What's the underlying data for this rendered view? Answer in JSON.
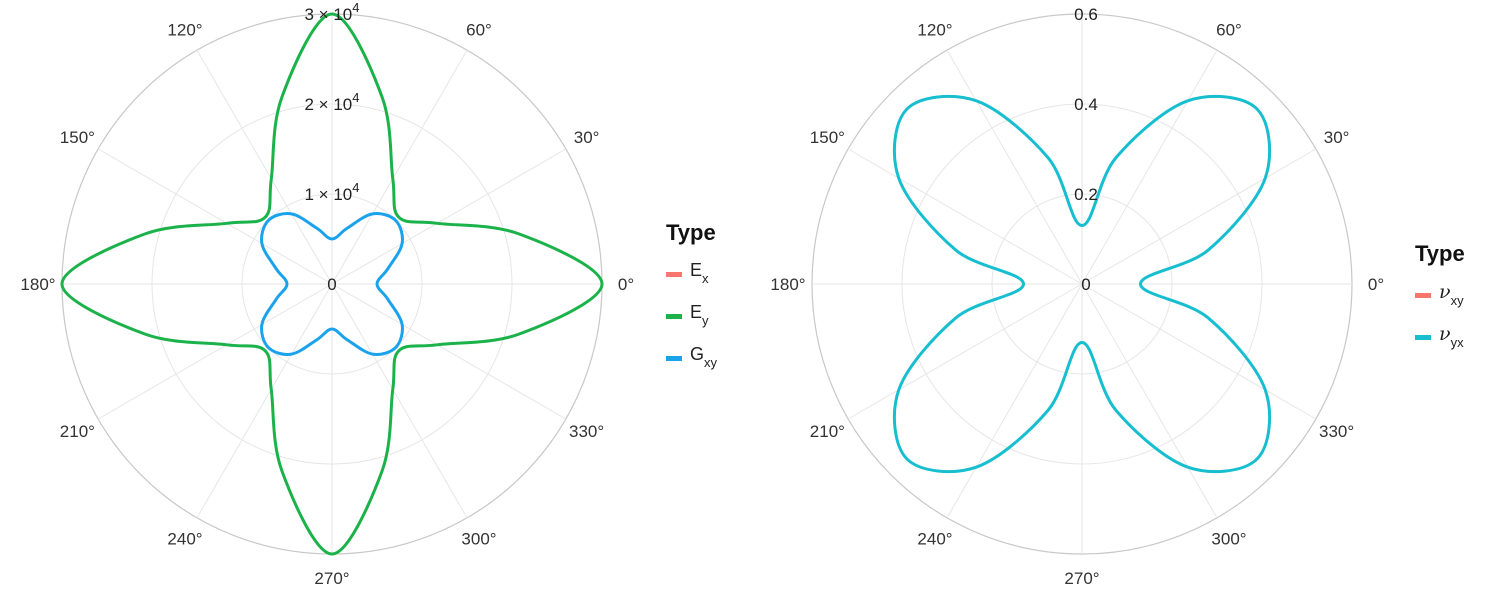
{
  "chart_data": [
    {
      "type": "line",
      "coordinate_system": "polar",
      "theta_unit": "degrees",
      "theta_ticks": [
        "0°",
        "30°",
        "60°",
        "90°",
        "120°",
        "150°",
        "180°",
        "210°",
        "240°",
        "270°",
        "300°",
        "330°"
      ],
      "theta_tick_labels_shown": [
        "0°",
        "30°",
        "60°",
        "120°",
        "150°",
        "180°",
        "210°",
        "240°",
        "270°",
        "300°",
        "330°"
      ],
      "r_lim": [
        0,
        30000
      ],
      "r_ticks": [
        0,
        10000,
        20000,
        30000
      ],
      "r_tick_labels": [
        {
          "base": "0",
          "exp": ""
        },
        {
          "base": "1 × 10",
          "exp": "4"
        },
        {
          "base": "2 × 10",
          "exp": "4"
        },
        {
          "base": "3 × 10",
          "exp": "4"
        }
      ],
      "grid": true,
      "legend_position": "right",
      "legend": {
        "title": "Type",
        "items": [
          {
            "base": "E",
            "sub": "x",
            "color": "#F8766D"
          },
          {
            "base": "E",
            "sub": "y",
            "color": "#1BB24A"
          },
          {
            "base": "G",
            "sub": "xy",
            "color": "#1AA3EC"
          }
        ]
      },
      "series": [
        {
          "name": "Ey",
          "color": "#1BB24A",
          "theta": [
            0,
            15,
            30,
            45,
            60,
            75,
            90,
            105,
            120,
            135,
            150,
            165,
            180,
            195,
            210,
            225,
            240,
            255,
            270,
            285,
            300,
            315,
            330,
            345,
            360
          ],
          "r": [
            30000,
            21500,
            13500,
            10500,
            13500,
            21500,
            30000,
            21500,
            13500,
            10500,
            13500,
            21500,
            30000,
            21500,
            13500,
            10500,
            13500,
            21500,
            30000,
            21500,
            13500,
            10500,
            13500,
            21500,
            30000
          ]
        },
        {
          "name": "Gxy",
          "color": "#1AA3EC",
          "theta": [
            0,
            15,
            30,
            45,
            60,
            75,
            90,
            105,
            120,
            135,
            150,
            165,
            180,
            195,
            210,
            225,
            240,
            255,
            270,
            285,
            300,
            315,
            330,
            345,
            360
          ],
          "r": [
            5000,
            6400,
            9000,
            10000,
            9000,
            6400,
            5000,
            6400,
            9000,
            10000,
            9000,
            6400,
            5000,
            6400,
            9000,
            10000,
            9000,
            6400,
            5000,
            6400,
            9000,
            10000,
            9000,
            6400,
            5000
          ]
        }
      ]
    },
    {
      "type": "line",
      "coordinate_system": "polar",
      "theta_unit": "degrees",
      "theta_ticks": [
        "0°",
        "30°",
        "60°",
        "90°",
        "120°",
        "150°",
        "180°",
        "210°",
        "240°",
        "270°",
        "300°",
        "330°"
      ],
      "theta_tick_labels_shown": [
        "0°",
        "30°",
        "60°",
        "120°",
        "150°",
        "180°",
        "210°",
        "240°",
        "270°",
        "300°",
        "330°"
      ],
      "r_lim": [
        0,
        0.6
      ],
      "r_ticks": [
        0,
        0.2,
        0.4,
        0.6
      ],
      "r_tick_labels": [
        {
          "base": "0",
          "exp": ""
        },
        {
          "base": "0.2",
          "exp": ""
        },
        {
          "base": "0.4",
          "exp": ""
        },
        {
          "base": "0.6",
          "exp": ""
        }
      ],
      "grid": true,
      "legend_position": "right",
      "legend": {
        "title": "Type",
        "items": [
          {
            "base": "ν",
            "sub": "xy",
            "color": "#F8766D"
          },
          {
            "base": "ν",
            "sub": "yx",
            "color": "#17BECF"
          }
        ]
      },
      "series": [
        {
          "name": "νyx",
          "color": "#17BECF",
          "theta": [
            0,
            15,
            30,
            45,
            60,
            75,
            90,
            105,
            120,
            135,
            150,
            165,
            180,
            195,
            210,
            225,
            240,
            255,
            270,
            285,
            300,
            315,
            330,
            345,
            360
          ],
          "r": [
            0.13,
            0.29,
            0.47,
            0.55,
            0.47,
            0.29,
            0.13,
            0.29,
            0.47,
            0.55,
            0.47,
            0.29,
            0.13,
            0.29,
            0.47,
            0.55,
            0.47,
            0.29,
            0.13,
            0.29,
            0.47,
            0.55,
            0.47,
            0.29,
            0.13
          ]
        }
      ]
    }
  ]
}
